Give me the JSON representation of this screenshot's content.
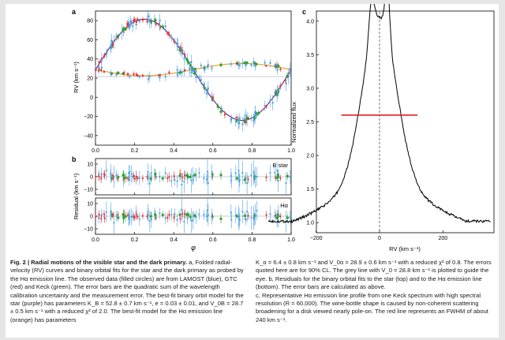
{
  "panel_labels": {
    "a": "a",
    "b": "b",
    "c": "c"
  },
  "panel_a": {
    "ylabel": "RV (km s⁻¹)",
    "y_ticks": [
      "80",
      "60",
      "40",
      "20",
      "0",
      "−20",
      "−40"
    ],
    "x_ticks": [
      "0.0",
      "0.2",
      "0.4",
      "0.6",
      "0.8",
      "1.0"
    ]
  },
  "panel_b": {
    "ylabel": "Residual (km s⁻¹)",
    "top_label": "B star",
    "bottom_label": "Hα",
    "y_ticks": [
      "10",
      "0",
      "−10"
    ],
    "x_ticks": [
      "0.0",
      "0.2",
      "0.4",
      "0.6",
      "0.8",
      "1.0"
    ],
    "xlabel": "φ"
  },
  "panel_c": {
    "ylabel": "Normalized flux",
    "xlabel": "RV (km s⁻¹)",
    "y_ticks": [
      "1.0",
      "1.5",
      "2.0",
      "2.5",
      "3.0",
      "3.5",
      "4.0"
    ],
    "x_ticks": [
      "−200",
      "0",
      "200"
    ]
  },
  "colors": {
    "star_model": "#7b2a8c",
    "halpha_model": "#f0a030",
    "lamost": "#4a9fe0",
    "gtc": "#e03030",
    "keck": "#2ca02c",
    "fwhm": "#e02020"
  },
  "caption": {
    "head": "Fig. 2 | Radial motions of the visible star and the dark primary.",
    "left_text": " a, Folded radial-velocity (RV) curves and binary orbital fits for the star and the dark primary as probed by the Hα emission line. The observed data (filled circles) are from LAMOST (blue), GTC (red) and Keck (green). The error bars are the quadratic sum of the wavelength calibration uncertainty and the measurement error. The best-fit binary orbit model for the star (purple) has parameters K_B = 52.8 ± 0.7 km s⁻¹, e = 0.03 ± 0.01, and V_0B = 28.7 ± 0.5 km s⁻¹ with a reduced χ² of 2.0. The best-fit model for the Hα emission line (orange) has parameters",
    "right_p1": "K_α = 6.4 ± 0.8 km s⁻¹ and V_0α = 28.9 ± 0.6 km s⁻¹ with a reduced χ² of 0.8. The errors quoted here are for 90% CL. The grey line with V_0 = 28.8 km s⁻¹ is plotted to guide the eye. b, Residuals for the binary orbital fits to the star (top) and to the Hα emission line (bottom). The error bars are calculated as above.",
    "right_p2": "c, Representative Hα emission line profile from one Keck spectrum with high spectral resolution (R = 60,000). The wine-bottle shape is caused by non-coherent scattering broadening for a disk viewed nearly pole-on. The red line represents an FWHM of about 240 km s⁻¹."
  }
}
